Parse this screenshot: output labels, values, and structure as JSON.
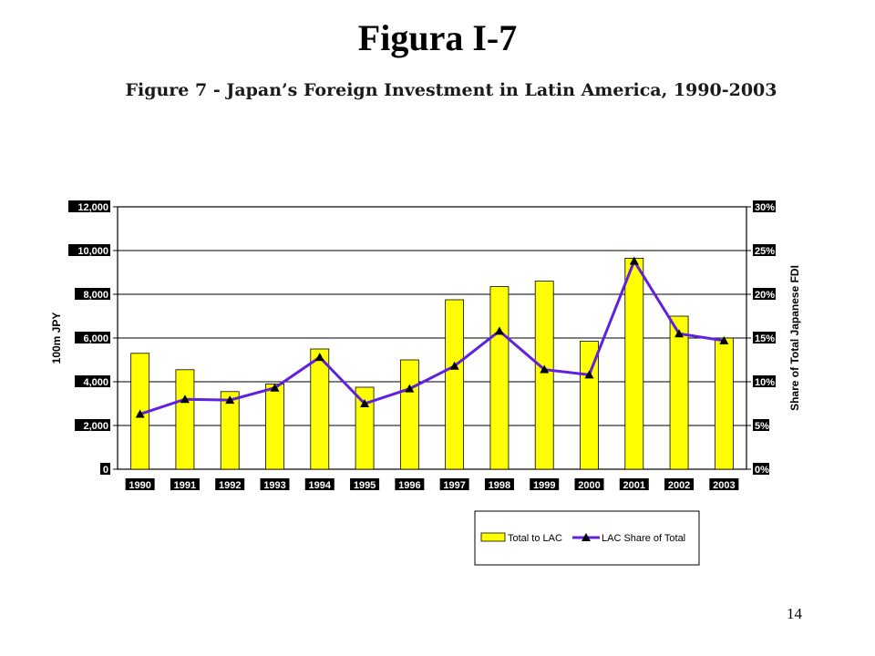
{
  "slide": {
    "title": "Figura I-7",
    "page_number": "14"
  },
  "colors": {
    "bar": "#ffff00",
    "line": "#6020e0",
    "marker": "#000000",
    "plot_background": "#ffffff"
  },
  "chart_data": {
    "type": "bar",
    "title": "Figure 7 - Japan’s Foreign Investment in Latin America, 1990-2003",
    "categories": [
      "1990",
      "1991",
      "1992",
      "1993",
      "1994",
      "1995",
      "1996",
      "1997",
      "1998",
      "1999",
      "2000",
      "2001",
      "2002",
      "2003"
    ],
    "series": [
      {
        "name": "Total to LAC",
        "type": "bar",
        "axis": "left",
        "values": [
          5300,
          4550,
          3550,
          3900,
          5500,
          3750,
          5000,
          7750,
          8350,
          8600,
          5850,
          9650,
          7000,
          6000
        ]
      },
      {
        "name": "LAC Share of Total",
        "type": "line",
        "axis": "right",
        "values": [
          6.3,
          8.0,
          7.9,
          9.3,
          12.8,
          7.5,
          9.2,
          11.8,
          15.8,
          11.4,
          10.8,
          23.8,
          15.5,
          14.7
        ]
      }
    ],
    "ylabel": "100m JPY",
    "y2label": "Share of Total Japanese FDI",
    "ylim": [
      0,
      12000
    ],
    "y2lim": [
      0,
      30
    ],
    "yticks": [
      "0",
      "2,000",
      "4,000",
      "6,000",
      "8,000",
      "10,000",
      "12,000"
    ],
    "y2ticks": [
      "0%",
      "5%",
      "10%",
      "15%",
      "20%",
      "25%",
      "30%"
    ],
    "grid": true,
    "legend": "bottom-right"
  }
}
